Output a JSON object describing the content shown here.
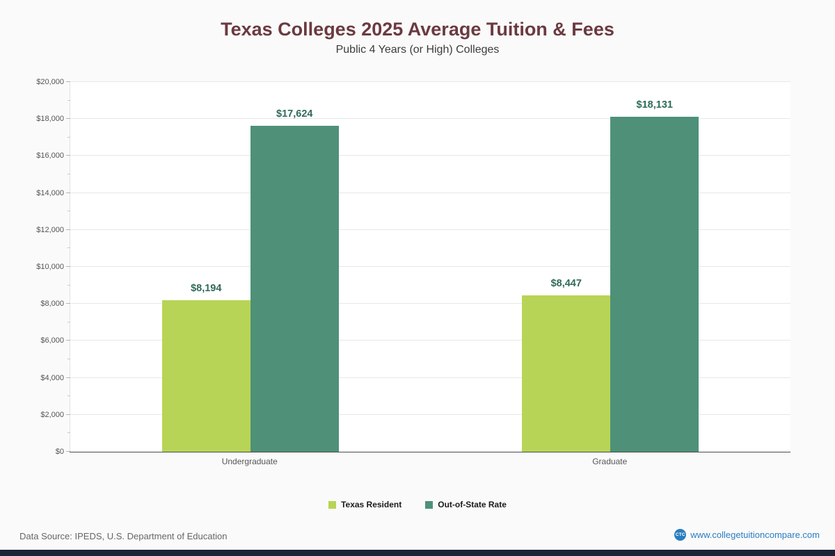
{
  "page": {
    "title": "Texas Colleges 2025 Average Tuition & Fees",
    "subtitle": "Public 4 Years (or High)  Colleges",
    "footer": {
      "source": "Data Source: IPEDS, U.S. Department of Education",
      "site": "www.collegetuitioncompare.com",
      "logo": "CTC"
    }
  },
  "chart_data": {
    "type": "bar",
    "title": "Texas Colleges 2025 Average Tuition & Fees",
    "subtitle": "Public 4 Years (or High)  Colleges",
    "categories": [
      "Undergraduate",
      "Graduate"
    ],
    "series": [
      {
        "name": "Texas Resident",
        "color": "#b8d456",
        "values": [
          8194,
          8447
        ],
        "labels": [
          "$8,194",
          "$8,447"
        ]
      },
      {
        "name": "Out-of-State Rate",
        "color": "#4e9178",
        "values": [
          17624,
          18131
        ],
        "labels": [
          "$17,624",
          "$18,131"
        ]
      }
    ],
    "ylim": [
      0,
      20000
    ],
    "ytick_step": 2000,
    "minor_tick_step": 1000,
    "ytick_labels": [
      "$0",
      "$2,000",
      "$4,000",
      "$6,000",
      "$8,000",
      "$10,000",
      "$12,000",
      "$14,000",
      "$16,000",
      "$18,000",
      "$20,000"
    ],
    "grid": true,
    "legend_position": "bottom",
    "value_label_color": "#2f6b59",
    "accent_colors": {
      "title": "#6b3a41",
      "link": "#2a7dc0",
      "bottom_bar": "#1b2438"
    }
  }
}
